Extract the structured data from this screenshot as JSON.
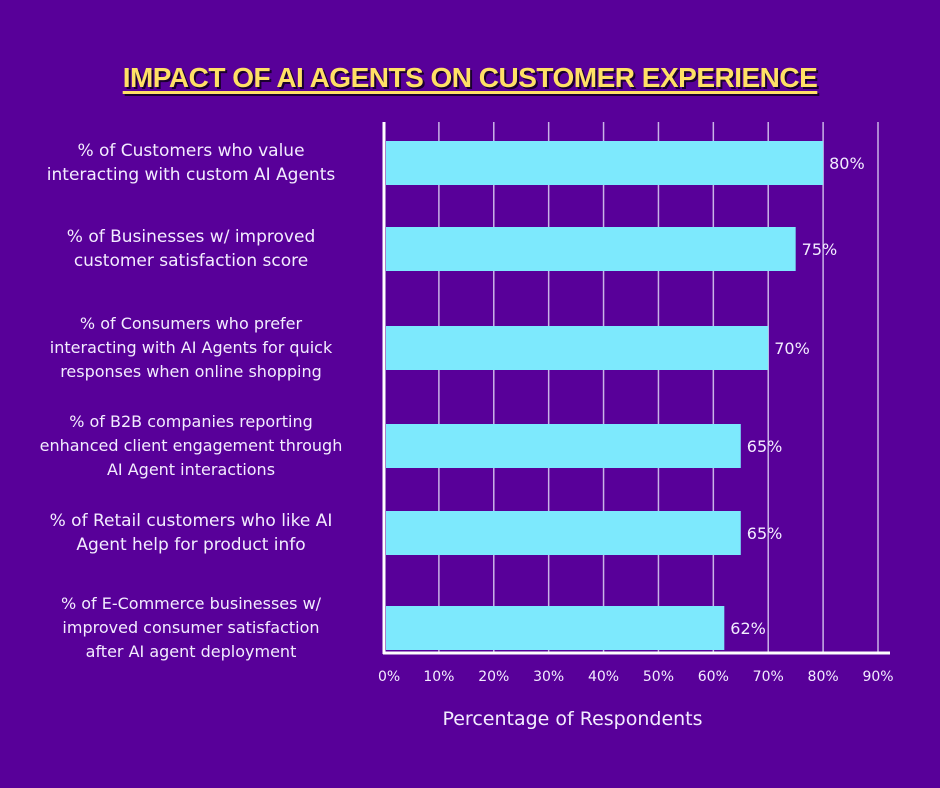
{
  "colors": {
    "background": "#580099",
    "bar": "#7DE9FD",
    "title": "#FFE066",
    "text": "#F3ECFF",
    "axis": "#FFFFFF",
    "grid": "#C9B3E6"
  },
  "chart_data": {
    "type": "bar",
    "orientation": "horizontal",
    "title": "IMPACT OF AI AGENTS ON CUSTOMER EXPERIENCE",
    "xlabel": "Percentage of Respondents",
    "ylabel": "",
    "xlim": [
      0,
      90
    ],
    "grid": true,
    "legend": "none",
    "x_ticks": [
      0,
      10,
      20,
      30,
      40,
      50,
      60,
      70,
      80,
      90
    ],
    "x_tick_labels": [
      "0%",
      "10%",
      "20%",
      "30%",
      "40%",
      "50%",
      "60%",
      "70%",
      "80%",
      "90%"
    ],
    "categories": [
      "% of Customers who value interacting with custom AI Agents",
      "% of Businesses w/ improved customer satisfaction score",
      "% of Consumers who prefer interacting with AI Agents for quick responses when online shopping",
      "% of B2B companies reporting enhanced client engagement through AI Agent interactions",
      "% of Retail customers who like AI Agent help for product info",
      "% of E-Commerce businesses w/ improved consumer satisfaction after AI agent deployment"
    ],
    "category_lines": [
      [
        "% of Customers who value",
        "interacting with custom AI Agents"
      ],
      [
        "% of Businesses w/ improved",
        "customer satisfaction score"
      ],
      [
        "% of Consumers who prefer",
        "interacting with AI Agents for quick",
        "responses when online shopping"
      ],
      [
        "% of B2B companies reporting",
        "enhanced client engagement through",
        "AI Agent interactions"
      ],
      [
        "% of Retail customers who like AI",
        "Agent help for product info"
      ],
      [
        "% of E-Commerce businesses w/",
        "improved consumer satisfaction",
        "after AI agent deployment"
      ]
    ],
    "values": [
      80,
      75,
      70,
      65,
      65,
      62
    ],
    "value_labels": [
      "80%",
      "75%",
      "70%",
      "65%",
      "65%",
      "62%"
    ]
  }
}
